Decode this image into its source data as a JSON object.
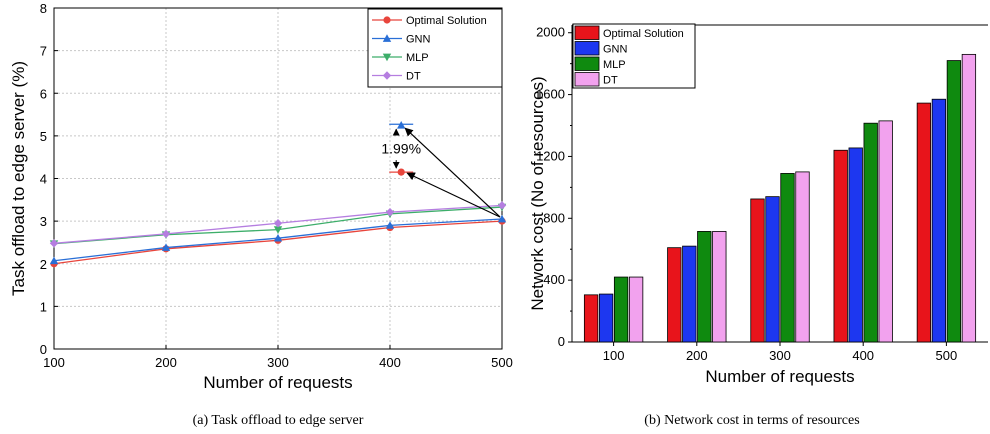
{
  "captions": {
    "a": "(a) Task offload to edge server",
    "b": "(b) Network cost in terms of resources"
  },
  "chart_data": [
    {
      "type": "line",
      "xlabel": "Number of requests",
      "ylabel": "Task offload to edge server (%)",
      "x": [
        100,
        200,
        300,
        400,
        500
      ],
      "xlim": [
        100,
        500
      ],
      "ylim": [
        0,
        8
      ],
      "yticks": [
        0,
        1,
        2,
        3,
        4,
        5,
        6,
        7,
        8
      ],
      "grid": true,
      "legend_position": "top-right",
      "series": [
        {
          "name": "Optimal Solution",
          "values": [
            2.0,
            2.35,
            2.55,
            2.85,
            3.0
          ],
          "color": "#e8453c",
          "marker": "circle"
        },
        {
          "name": "GNN",
          "values": [
            2.07,
            2.38,
            2.6,
            2.9,
            3.05
          ],
          "color": "#2a6fd6",
          "marker": "triangle-up"
        },
        {
          "name": "MLP",
          "values": [
            2.47,
            2.68,
            2.8,
            3.17,
            3.33
          ],
          "color": "#3dae6a",
          "marker": "triangle-down"
        },
        {
          "name": "DT",
          "values": [
            2.48,
            2.7,
            2.95,
            3.21,
            3.37
          ],
          "color": "#b57ee0",
          "marker": "diamond"
        }
      ],
      "annotation": {
        "text": "1.99%",
        "upper_point": {
          "x": 410,
          "y": 5.25
        },
        "lower_point": {
          "x": 410,
          "y": 4.15
        },
        "arrow_target": {
          "x": 500,
          "y": 3.05
        }
      }
    },
    {
      "type": "bar",
      "xlabel": "Number of requests",
      "ylabel": "Network cost (No of resources)",
      "categories": [
        "100",
        "200",
        "300",
        "400",
        "500"
      ],
      "ylim": [
        0,
        2050
      ],
      "yticks": [
        0,
        400,
        800,
        1200,
        1600,
        2000
      ],
      "grid": false,
      "legend_position": "top-left",
      "series": [
        {
          "name": "Optimal Solution",
          "values": [
            305,
            610,
            925,
            1240,
            1545
          ],
          "color": "#e8141b"
        },
        {
          "name": "GNN",
          "values": [
            310,
            620,
            940,
            1255,
            1570
          ],
          "color": "#1d37f0"
        },
        {
          "name": "MLP",
          "values": [
            420,
            715,
            1090,
            1415,
            1820
          ],
          "color": "#0f8a0f"
        },
        {
          "name": "DT",
          "values": [
            420,
            715,
            1100,
            1430,
            1860
          ],
          "color": "#f2a2ee"
        }
      ]
    }
  ]
}
